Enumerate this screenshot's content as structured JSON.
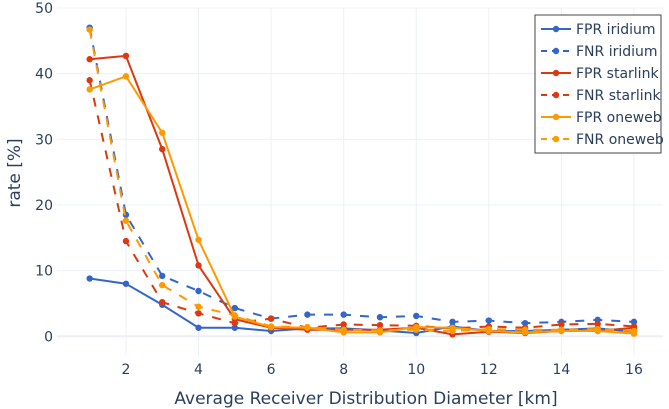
{
  "chart_data": {
    "type": "line",
    "xlabel": "Average Receiver Distribution Diameter [km]",
    "ylabel": "rate [%]",
    "xlim": [
      0.1,
      16.8
    ],
    "ylim": [
      -3,
      50
    ],
    "xticks": [
      2,
      4,
      6,
      8,
      10,
      12,
      14,
      16
    ],
    "yticks": [
      0,
      10,
      20,
      30,
      40,
      50
    ],
    "grid": true,
    "legend_position": "top-right",
    "x": [
      1,
      2,
      3,
      4,
      5,
      6,
      7,
      8,
      9,
      10,
      11,
      12,
      13,
      14,
      15,
      16
    ],
    "series": [
      {
        "name": "FPR iridium",
        "color": "#3366cc",
        "dash": "solid",
        "values": [
          8.8,
          8.0,
          4.8,
          1.3,
          1.3,
          0.8,
          1.2,
          1.2,
          0.9,
          0.5,
          1.5,
          0.8,
          0.8,
          1.0,
          1.2,
          0.7
        ]
      },
      {
        "name": "FNR iridium",
        "color": "#3366cc",
        "dash": "dash",
        "values": [
          47.0,
          18.5,
          9.2,
          6.9,
          4.3,
          2.7,
          3.3,
          3.3,
          2.9,
          3.1,
          2.2,
          2.4,
          2.0,
          2.2,
          2.5,
          2.2
        ]
      },
      {
        "name": "FPR starlink",
        "color": "#dc3912",
        "dash": "solid",
        "values": [
          42.2,
          42.7,
          28.5,
          10.8,
          2.6,
          1.3,
          1.0,
          1.0,
          1.0,
          1.3,
          0.3,
          0.7,
          0.5,
          0.8,
          0.8,
          1.3
        ]
      },
      {
        "name": "FNR starlink",
        "color": "#dc3912",
        "dash": "dash",
        "values": [
          39.0,
          14.5,
          5.2,
          3.5,
          2.0,
          2.7,
          1.3,
          1.8,
          1.7,
          1.6,
          1.2,
          1.5,
          1.3,
          1.8,
          1.9,
          1.5
        ]
      },
      {
        "name": "FPR oneweb",
        "color": "#ff9900",
        "dash": "solid",
        "values": [
          37.6,
          39.6,
          31.0,
          14.7,
          3.0,
          1.4,
          1.3,
          0.6,
          0.6,
          1.4,
          1.3,
          0.8,
          0.6,
          0.8,
          0.8,
          0.4
        ]
      },
      {
        "name": "FNR oneweb",
        "color": "#ff9900",
        "dash": "dash",
        "values": [
          46.7,
          17.6,
          7.8,
          4.5,
          3.2,
          1.5,
          1.4,
          1.0,
          0.9,
          1.0,
          0.8,
          1.1,
          1.0,
          1.0,
          1.1,
          0.8
        ]
      }
    ]
  }
}
